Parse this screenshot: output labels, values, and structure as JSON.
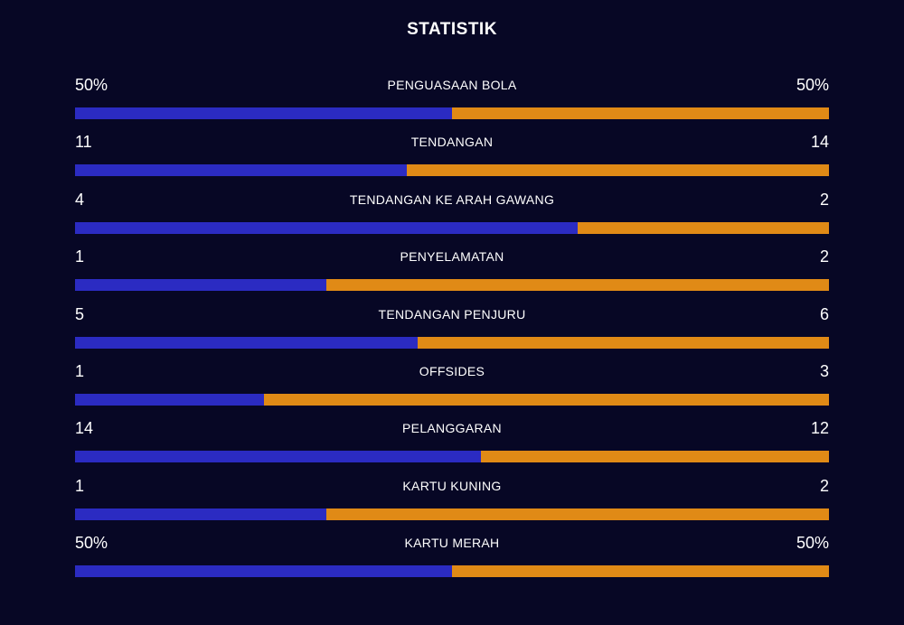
{
  "title": "STATISTIK",
  "colors": {
    "background": "#070725",
    "home": "#2b2bc2",
    "away": "#e08a16",
    "text": "#ffffff"
  },
  "stats": [
    {
      "label": "PENGUASAAN BOLA",
      "home": "50%",
      "away": "50%",
      "home_share": 0.5
    },
    {
      "label": "TENDANGAN",
      "home": "11",
      "away": "14",
      "home_share": 0.44
    },
    {
      "label": "TENDANGAN KE ARAH GAWANG",
      "home": "4",
      "away": "2",
      "home_share": 0.667
    },
    {
      "label": "PENYELAMATAN",
      "home": "1",
      "away": "2",
      "home_share": 0.333
    },
    {
      "label": "TENDANGAN PENJURU",
      "home": "5",
      "away": "6",
      "home_share": 0.455
    },
    {
      "label": "OFFSIDES",
      "home": "1",
      "away": "3",
      "home_share": 0.25
    },
    {
      "label": "PELANGGARAN",
      "home": "14",
      "away": "12",
      "home_share": 0.538
    },
    {
      "label": "KARTU KUNING",
      "home": "1",
      "away": "2",
      "home_share": 0.333
    },
    {
      "label": "KARTU MERAH",
      "home": "50%",
      "away": "50%",
      "home_share": 0.5
    }
  ]
}
